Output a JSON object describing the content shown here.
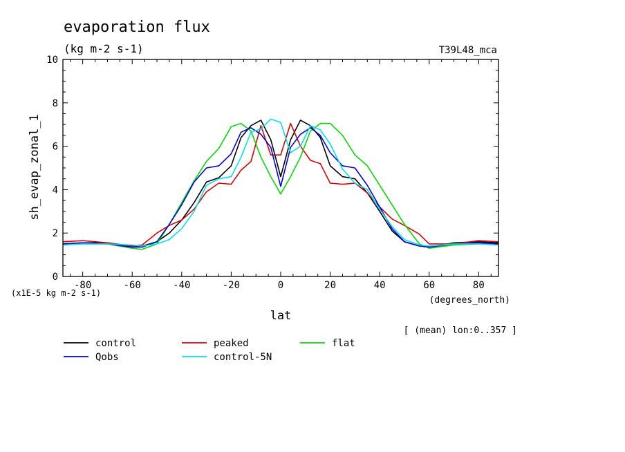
{
  "chart_data": {
    "type": "line",
    "title": "evaporation flux",
    "units": "(kg m-2 s-1)",
    "run_label": "T39L48_mca",
    "ylabel": "sh_evap_zonal_1",
    "xlabel": "lat",
    "x_units": "(degrees_north)",
    "y_scale_note": "(x1E-5 kg m-2 s-1)",
    "mean_note": "[ (mean) lon:0..357 ]",
    "xlim": [
      -88,
      88
    ],
    "ylim": [
      0,
      10
    ],
    "x_ticks": [
      -80,
      -60,
      -40,
      -20,
      0,
      20,
      40,
      60,
      80
    ],
    "y_ticks": [
      0,
      2,
      4,
      6,
      8,
      10
    ],
    "grid": false,
    "x": [
      -88,
      -80,
      -70,
      -60,
      -56,
      -50,
      -45,
      -40,
      -35,
      -30,
      -25,
      -20,
      -16,
      -12,
      -8,
      -4,
      0,
      4,
      8,
      12,
      16,
      20,
      25,
      30,
      35,
      40,
      45,
      50,
      56,
      60,
      70,
      80,
      88
    ],
    "series": [
      {
        "name": "control",
        "color": "#000000",
        "values": [
          1.5,
          1.55,
          1.55,
          1.4,
          1.4,
          1.6,
          2.0,
          2.6,
          3.4,
          4.35,
          4.55,
          5.1,
          6.4,
          6.95,
          7.2,
          6.3,
          4.6,
          6.3,
          7.2,
          6.95,
          6.4,
          5.1,
          4.6,
          4.5,
          3.85,
          3.0,
          2.1,
          1.6,
          1.4,
          1.35,
          1.55,
          1.6,
          1.55
        ]
      },
      {
        "name": "peaked",
        "color": "#e00000",
        "values": [
          1.6,
          1.65,
          1.55,
          1.4,
          1.45,
          2.0,
          2.35,
          2.6,
          3.1,
          3.9,
          4.3,
          4.25,
          4.9,
          5.3,
          6.95,
          5.6,
          5.6,
          7.05,
          6.0,
          5.35,
          5.2,
          4.3,
          4.25,
          4.3,
          3.85,
          3.2,
          2.65,
          2.35,
          1.95,
          1.5,
          1.5,
          1.65,
          1.6
        ]
      },
      {
        "name": "flat",
        "color": "#00dd00",
        "values": [
          1.5,
          1.5,
          1.5,
          1.3,
          1.25,
          1.5,
          2.4,
          3.4,
          4.4,
          5.3,
          5.9,
          6.9,
          7.05,
          6.7,
          5.5,
          4.6,
          3.8,
          4.6,
          5.5,
          6.7,
          7.05,
          7.05,
          6.5,
          5.6,
          5.1,
          4.2,
          3.3,
          2.4,
          1.5,
          1.3,
          1.45,
          1.5,
          1.5
        ]
      },
      {
        "name": "Qobs",
        "color": "#0000dd",
        "values": [
          1.5,
          1.55,
          1.5,
          1.35,
          1.35,
          1.6,
          2.4,
          3.3,
          4.35,
          5.0,
          5.1,
          5.65,
          6.65,
          6.85,
          6.55,
          5.95,
          4.15,
          5.95,
          6.55,
          6.85,
          6.5,
          5.7,
          5.1,
          5.0,
          4.2,
          3.2,
          2.2,
          1.6,
          1.4,
          1.35,
          1.5,
          1.55,
          1.5
        ]
      },
      {
        "name": "control-5N",
        "color": "#00e0f0",
        "values": [
          1.45,
          1.5,
          1.5,
          1.45,
          1.4,
          1.5,
          1.7,
          2.2,
          3.0,
          4.2,
          4.5,
          4.6,
          5.5,
          6.65,
          6.8,
          7.25,
          7.1,
          5.7,
          6.0,
          6.95,
          6.75,
          6.1,
          4.95,
          4.3,
          4.0,
          3.1,
          2.3,
          1.7,
          1.45,
          1.4,
          1.5,
          1.5,
          1.45
        ]
      }
    ]
  }
}
